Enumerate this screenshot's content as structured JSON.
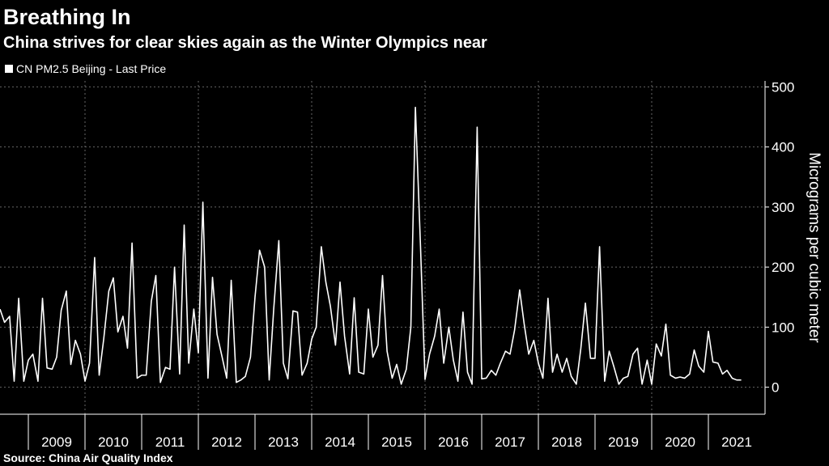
{
  "chart_data": {
    "type": "line",
    "title": "Breathing In",
    "subtitle": "China strives for clear skies again as the Winter Olympics near",
    "y_label": "Micrograms per cubic meter",
    "source": "Source: China Air Quality Index",
    "series": [
      {
        "name": "CN PM2.5 Beijing - Last Price",
        "color": "#ffffff",
        "values": [
          130,
          108,
          118,
          10,
          148,
          10,
          45,
          55,
          10,
          148,
          32,
          30,
          50,
          128,
          160,
          38,
          78,
          55,
          10,
          40,
          216,
          20,
          80,
          160,
          182,
          92,
          118,
          65,
          240,
          15,
          20,
          20,
          143,
          186,
          8,
          33,
          30,
          200,
          22,
          270,
          40,
          130,
          57,
          308,
          15,
          183,
          88,
          50,
          15,
          178,
          8,
          12,
          18,
          50,
          150,
          228,
          200,
          12,
          130,
          244,
          40,
          14,
          127,
          125,
          20,
          40,
          80,
          100,
          234,
          175,
          135,
          70,
          175,
          85,
          22,
          149,
          25,
          22,
          130,
          50,
          70,
          186,
          60,
          15,
          38,
          5,
          30,
          100,
          466,
          235,
          13,
          55,
          85,
          130,
          40,
          100,
          45,
          10,
          125,
          25,
          5,
          433,
          14,
          15,
          28,
          20,
          40,
          60,
          55,
          95,
          162,
          105,
          55,
          78,
          40,
          15,
          148,
          25,
          55,
          25,
          48,
          18,
          5,
          65,
          140,
          48,
          48,
          234,
          10,
          60,
          35,
          5,
          15,
          18,
          55,
          65,
          5,
          45,
          5,
          72,
          52,
          105,
          20,
          15,
          17,
          15,
          22,
          62,
          35,
          25,
          93,
          42,
          40,
          22,
          28,
          15,
          12,
          12
        ]
      }
    ],
    "x": [
      2008.5,
      2008.58,
      2008.67,
      2008.75,
      2008.83,
      2008.92,
      2009,
      2009.08,
      2009.17,
      2009.25,
      2009.33,
      2009.42,
      2009.5,
      2009.58,
      2009.67,
      2009.75,
      2009.83,
      2009.92,
      2010,
      2010.08,
      2010.17,
      2010.25,
      2010.33,
      2010.42,
      2010.5,
      2010.58,
      2010.67,
      2010.75,
      2010.83,
      2010.92,
      2011,
      2011.08,
      2011.17,
      2011.25,
      2011.33,
      2011.42,
      2011.5,
      2011.58,
      2011.67,
      2011.75,
      2011.83,
      2011.92,
      2012,
      2012.08,
      2012.17,
      2012.25,
      2012.33,
      2012.42,
      2012.5,
      2012.58,
      2012.67,
      2012.75,
      2012.83,
      2012.92,
      2013,
      2013.08,
      2013.17,
      2013.25,
      2013.33,
      2013.42,
      2013.5,
      2013.58,
      2013.67,
      2013.75,
      2013.83,
      2013.92,
      2014,
      2014.08,
      2014.17,
      2014.25,
      2014.33,
      2014.42,
      2014.5,
      2014.58,
      2014.67,
      2014.75,
      2014.83,
      2014.92,
      2015,
      2015.08,
      2015.17,
      2015.25,
      2015.33,
      2015.42,
      2015.5,
      2015.58,
      2015.67,
      2015.75,
      2015.83,
      2015.92,
      2016,
      2016.08,
      2016.17,
      2016.25,
      2016.33,
      2016.42,
      2016.5,
      2016.58,
      2016.67,
      2016.75,
      2016.83,
      2016.92,
      2017,
      2017.08,
      2017.17,
      2017.25,
      2017.33,
      2017.42,
      2017.5,
      2017.58,
      2017.67,
      2017.75,
      2017.83,
      2017.92,
      2018,
      2018.08,
      2018.17,
      2018.25,
      2018.33,
      2018.42,
      2018.5,
      2018.58,
      2018.67,
      2018.75,
      2018.83,
      2018.92,
      2019,
      2019.08,
      2019.17,
      2019.25,
      2019.33,
      2019.42,
      2019.5,
      2019.58,
      2019.67,
      2019.75,
      2019.83,
      2019.92,
      2020,
      2020.08,
      2020.17,
      2020.25,
      2020.33,
      2020.42,
      2020.5,
      2020.58,
      2020.67,
      2020.75,
      2020.83,
      2020.92,
      2021,
      2021.08,
      2021.17,
      2021.25,
      2021.33,
      2021.42,
      2021.5,
      2021.58
    ],
    "xlim": [
      2008.5,
      2022.0
    ],
    "xticks": [
      2009,
      2010,
      2011,
      2012,
      2013,
      2014,
      2015,
      2016,
      2017,
      2018,
      2019,
      2020,
      2021
    ],
    "ylim": [
      -45,
      510
    ],
    "yticks": [
      0,
      100,
      200,
      300,
      400,
      500
    ],
    "grid": true,
    "legend": "top-left"
  }
}
